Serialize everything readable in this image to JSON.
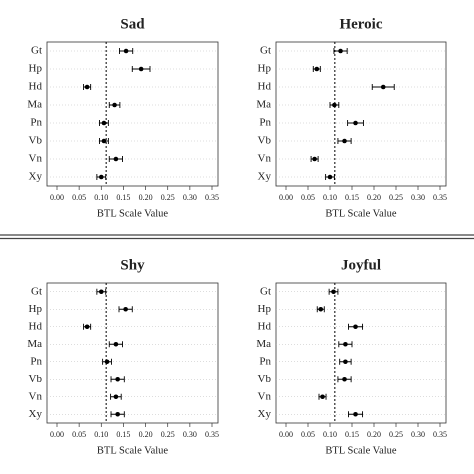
{
  "chart_data": [
    {
      "type": "dot",
      "title": "Sad",
      "xlabel": "BTL Scale Value",
      "categories": [
        "Gt",
        "Hp",
        "Hd",
        "Ma",
        "Pn",
        "Vb",
        "Vn",
        "Xy"
      ],
      "values": [
        0.156,
        0.19,
        0.068,
        0.13,
        0.106,
        0.106,
        0.133,
        0.1
      ],
      "errors": [
        0.015,
        0.02,
        0.008,
        0.012,
        0.01,
        0.01,
        0.015,
        0.01
      ],
      "reference_line": 0.111,
      "color": "#000000",
      "xlim": [
        0,
        0.35
      ],
      "xticks": [
        {
          "value": 0,
          "label": "0.00"
        },
        0.05,
        {
          "value": 0.1,
          "label": "0.10"
        },
        0.15,
        {
          "value": 0.2,
          "label": "0.20"
        },
        0.25,
        {
          "value": 0.3,
          "label": "0.30"
        },
        0.35
      ]
    },
    {
      "type": "dot",
      "title": "Heroic",
      "xlabel": "BTL Scale Value",
      "categories": [
        "Gt",
        "Hp",
        "Hd",
        "Ma",
        "Pn",
        "Vb",
        "Vn",
        "Xy"
      ],
      "values": [
        0.124,
        0.07,
        0.221,
        0.11,
        0.158,
        0.133,
        0.065,
        0.1
      ],
      "errors": [
        0.015,
        0.008,
        0.025,
        0.01,
        0.018,
        0.015,
        0.008,
        0.01
      ],
      "reference_line": 0.111,
      "color": "#000000",
      "xlim": [
        0,
        0.35
      ],
      "xticks": [
        {
          "value": 0,
          "label": "0.00"
        },
        0.05,
        {
          "value": 0.1,
          "label": "0.10"
        },
        0.15,
        {
          "value": 0.2,
          "label": "0.20"
        },
        0.25,
        {
          "value": 0.3,
          "label": "0.30"
        },
        0.35
      ]
    },
    {
      "type": "dot",
      "title": "Shy",
      "xlabel": "BTL Scale Value",
      "categories": [
        "Gt",
        "Hp",
        "Hd",
        "Ma",
        "Pn",
        "Vb",
        "Vn",
        "Xy"
      ],
      "values": [
        0.1,
        0.155,
        0.068,
        0.133,
        0.113,
        0.137,
        0.133,
        0.137
      ],
      "errors": [
        0.01,
        0.015,
        0.008,
        0.015,
        0.01,
        0.015,
        0.012,
        0.015
      ],
      "reference_line": 0.111,
      "color": "#000000",
      "xlim": [
        0,
        0.35
      ],
      "xticks": [
        {
          "value": 0,
          "label": "0.00"
        },
        0.05,
        {
          "value": 0.1,
          "label": "0.10"
        },
        0.15,
        {
          "value": 0.2,
          "label": "0.20"
        },
        0.25,
        {
          "value": 0.3,
          "label": "0.30"
        },
        0.35
      ]
    },
    {
      "type": "dot",
      "title": "Joyful",
      "xlabel": "BTL Scale Value",
      "categories": [
        "Gt",
        "Hp",
        "Hd",
        "Ma",
        "Pn",
        "Vb",
        "Vn",
        "Xy"
      ],
      "values": [
        0.108,
        0.079,
        0.158,
        0.135,
        0.135,
        0.133,
        0.083,
        0.158
      ],
      "errors": [
        0.01,
        0.008,
        0.016,
        0.015,
        0.013,
        0.015,
        0.008,
        0.016
      ],
      "reference_line": 0.111,
      "color": "#000000",
      "xlim": [
        0,
        0.35
      ],
      "xticks": [
        {
          "value": 0,
          "label": "0.00"
        },
        0.05,
        {
          "value": 0.1,
          "label": "0.10"
        },
        0.15,
        {
          "value": 0.2,
          "label": "0.20"
        },
        0.25,
        {
          "value": 0.3,
          "label": "0.30"
        },
        0.35
      ]
    }
  ]
}
